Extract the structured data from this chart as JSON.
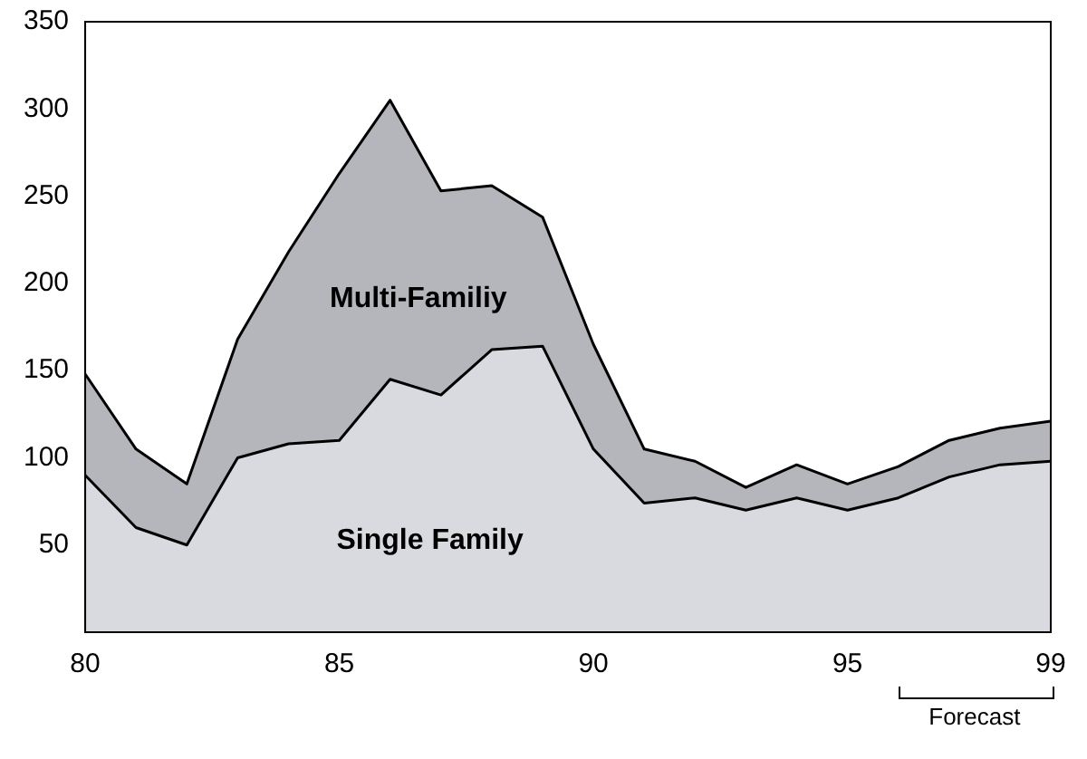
{
  "chart_data": {
    "type": "area",
    "stacked": true,
    "x": [
      80,
      81,
      82,
      83,
      84,
      85,
      86,
      87,
      88,
      89,
      90,
      91,
      92,
      93,
      94,
      95,
      96,
      97,
      98,
      99
    ],
    "series": [
      {
        "color": "#d9dadf",
        "values": [
          90,
          60,
          50,
          100,
          108,
          110,
          145,
          136,
          162,
          164,
          105,
          74,
          77,
          70,
          77,
          70,
          77,
          89,
          96,
          98
        ]
      },
      {
        "color": "#b4b6bc",
        "values": [
          58,
          45,
          35,
          68,
          110,
          153,
          160,
          117,
          94,
          74,
          60,
          31,
          21,
          13,
          19,
          15,
          18,
          21,
          21,
          23
        ]
      }
    ],
    "xlim": [
      80,
      99
    ],
    "xticks": [
      80,
      85,
      90,
      95,
      99
    ],
    "ylim": [
      0,
      350
    ],
    "yticks": [
      50,
      100,
      150,
      200,
      250,
      300,
      350
    ],
    "grid": false,
    "legend": false,
    "annotations": [
      "Multi-Familiy",
      "Single Family",
      "Forecast"
    ]
  }
}
